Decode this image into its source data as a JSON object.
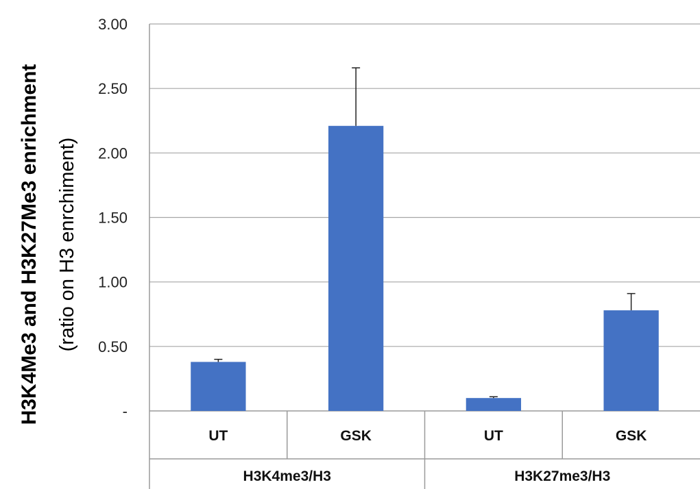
{
  "chart_data": {
    "type": "bar",
    "title": "",
    "ylabel": "H3K4Me3 and H3K27Me3 enrichment",
    "ylabel_sub": "(ratio on H3 enrchiment)",
    "ylim": [
      0,
      3
    ],
    "yticks": [
      0,
      0.5,
      1.0,
      1.5,
      2.0,
      2.5,
      3.0
    ],
    "ytick_labels": [
      "-",
      "0.50",
      "1.00",
      "1.50",
      "2.00",
      "2.50",
      "3.00"
    ],
    "grid": true,
    "bar_color": "#4472C4",
    "categories": [
      "UT",
      "GSK",
      "UT",
      "GSK"
    ],
    "groups": [
      {
        "label": "H3K4me3/H3",
        "categories": [
          "UT",
          "GSK"
        ]
      },
      {
        "label": "H3K27me3/H3",
        "categories": [
          "UT",
          "GSK"
        ]
      }
    ],
    "values": [
      0.38,
      2.21,
      0.1,
      0.78
    ],
    "error_plus": [
      0.02,
      0.45,
      0.01,
      0.13
    ]
  }
}
